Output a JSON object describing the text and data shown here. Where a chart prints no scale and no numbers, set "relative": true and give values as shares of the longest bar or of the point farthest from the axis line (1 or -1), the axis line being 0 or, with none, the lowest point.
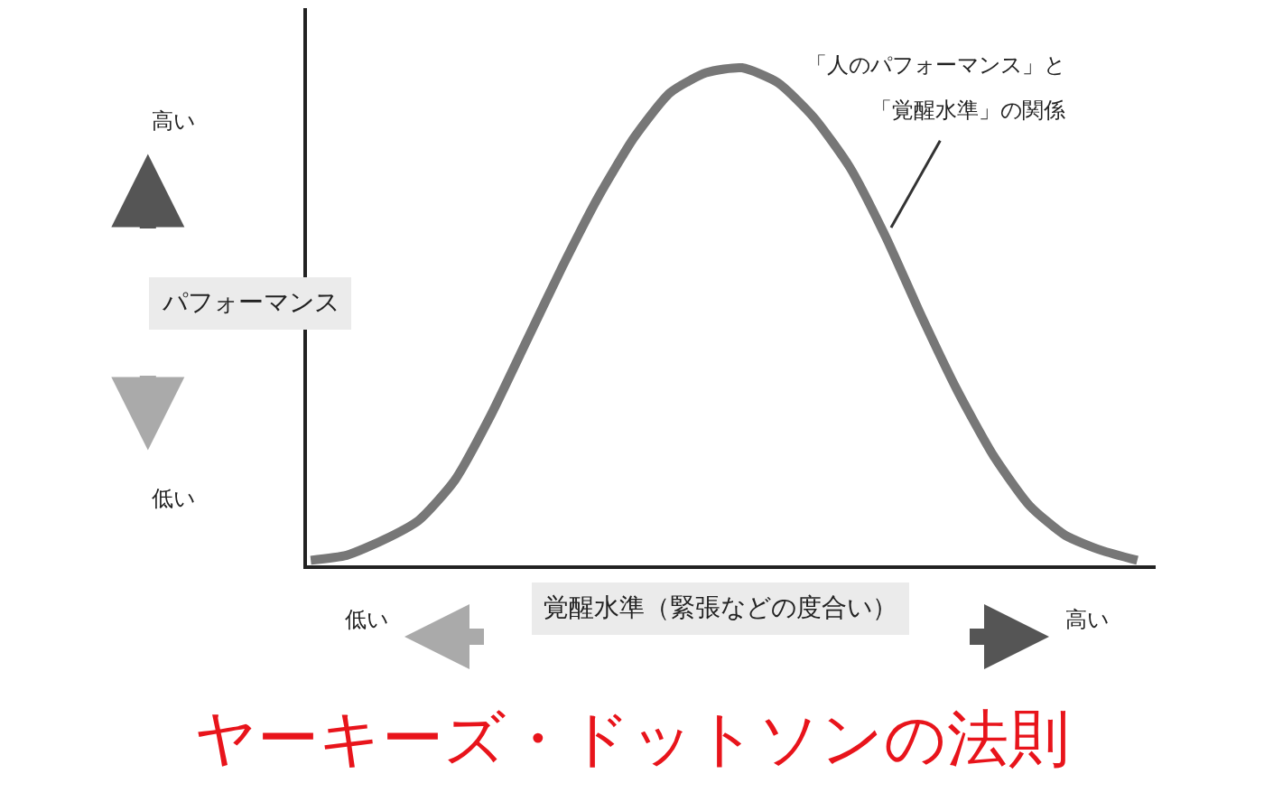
{
  "chart_data": {
    "type": "line",
    "relative": true,
    "title": "ヤーキーズ・ドットソンの法則",
    "xlabel": "覚醒水準（緊張などの度合い）",
    "ylabel": "パフォーマンス",
    "categories": [
      null,
      null,
      null,
      null,
      null,
      null,
      null,
      null,
      null,
      null,
      null,
      null,
      null,
      null,
      null,
      null,
      null,
      null,
      null,
      null,
      null,
      null,
      null,
      null
    ],
    "series": [
      {
        "color": "#777777",
        "values": [
          0.01,
          0.02,
          0.05,
          0.09,
          0.17,
          0.3,
          0.45,
          0.6,
          0.74,
          0.86,
          0.95,
          0.99,
          1.0,
          0.97,
          0.9,
          0.8,
          0.66,
          0.5,
          0.35,
          0.22,
          0.12,
          0.06,
          0.03,
          0.01
        ]
      }
    ],
    "annotations": [
      "高い",
      "低い",
      "低い",
      "高い",
      "「人のパフォーマンス」と",
      "「覚醒水準」の関係"
    ],
    "marker": "none",
    "line_style": "solid"
  }
}
